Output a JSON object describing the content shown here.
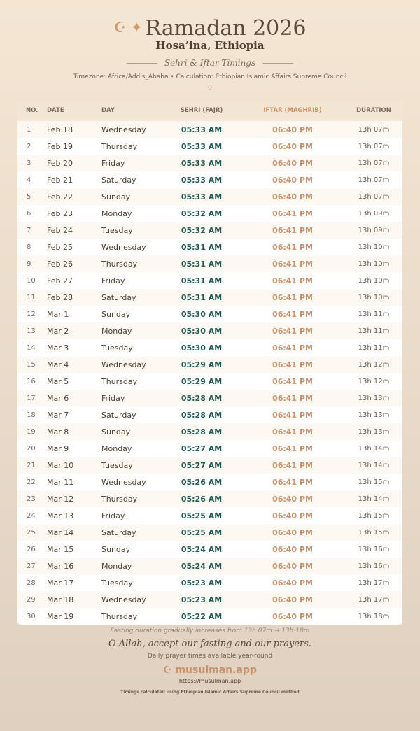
{
  "header": {
    "icons": "☪ ✦",
    "title": "Ramadan 2026",
    "city": "Hosa’ina, Ethiopia",
    "subtitle": "Sehri & Iftar Timings",
    "info": "Timezone: Africa/Addis_Ababa • Calculation: Ethiopian Islamic Affairs Supreme Council",
    "ornament": "◇"
  },
  "table": {
    "headers": [
      "NO.",
      "DATE",
      "DAY",
      "SEHRI (FAJR)",
      "IFTAR (MAGHRIB)",
      "DURATION"
    ],
    "rows": [
      [
        "1",
        "Feb 18",
        "Wednesday",
        "05:33 AM",
        "06:40 PM",
        "13h 07m"
      ],
      [
        "2",
        "Feb 19",
        "Thursday",
        "05:33 AM",
        "06:40 PM",
        "13h 07m"
      ],
      [
        "3",
        "Feb 20",
        "Friday",
        "05:33 AM",
        "06:40 PM",
        "13h 07m"
      ],
      [
        "4",
        "Feb 21",
        "Saturday",
        "05:33 AM",
        "06:40 PM",
        "13h 07m"
      ],
      [
        "5",
        "Feb 22",
        "Sunday",
        "05:33 AM",
        "06:40 PM",
        "13h 07m"
      ],
      [
        "6",
        "Feb 23",
        "Monday",
        "05:32 AM",
        "06:41 PM",
        "13h 09m"
      ],
      [
        "7",
        "Feb 24",
        "Tuesday",
        "05:32 AM",
        "06:41 PM",
        "13h 09m"
      ],
      [
        "8",
        "Feb 25",
        "Wednesday",
        "05:31 AM",
        "06:41 PM",
        "13h 10m"
      ],
      [
        "9",
        "Feb 26",
        "Thursday",
        "05:31 AM",
        "06:41 PM",
        "13h 10m"
      ],
      [
        "10",
        "Feb 27",
        "Friday",
        "05:31 AM",
        "06:41 PM",
        "13h 10m"
      ],
      [
        "11",
        "Feb 28",
        "Saturday",
        "05:31 AM",
        "06:41 PM",
        "13h 10m"
      ],
      [
        "12",
        "Mar 1",
        "Sunday",
        "05:30 AM",
        "06:41 PM",
        "13h 11m"
      ],
      [
        "13",
        "Mar 2",
        "Monday",
        "05:30 AM",
        "06:41 PM",
        "13h 11m"
      ],
      [
        "14",
        "Mar 3",
        "Tuesday",
        "05:30 AM",
        "06:41 PM",
        "13h 11m"
      ],
      [
        "15",
        "Mar 4",
        "Wednesday",
        "05:29 AM",
        "06:41 PM",
        "13h 12m"
      ],
      [
        "16",
        "Mar 5",
        "Thursday",
        "05:29 AM",
        "06:41 PM",
        "13h 12m"
      ],
      [
        "17",
        "Mar 6",
        "Friday",
        "05:28 AM",
        "06:41 PM",
        "13h 13m"
      ],
      [
        "18",
        "Mar 7",
        "Saturday",
        "05:28 AM",
        "06:41 PM",
        "13h 13m"
      ],
      [
        "19",
        "Mar 8",
        "Sunday",
        "05:28 AM",
        "06:41 PM",
        "13h 13m"
      ],
      [
        "20",
        "Mar 9",
        "Monday",
        "05:27 AM",
        "06:41 PM",
        "13h 14m"
      ],
      [
        "21",
        "Mar 10",
        "Tuesday",
        "05:27 AM",
        "06:41 PM",
        "13h 14m"
      ],
      [
        "22",
        "Mar 11",
        "Wednesday",
        "05:26 AM",
        "06:41 PM",
        "13h 15m"
      ],
      [
        "23",
        "Mar 12",
        "Thursday",
        "05:26 AM",
        "06:40 PM",
        "13h 14m"
      ],
      [
        "24",
        "Mar 13",
        "Friday",
        "05:25 AM",
        "06:40 PM",
        "13h 15m"
      ],
      [
        "25",
        "Mar 14",
        "Saturday",
        "05:25 AM",
        "06:40 PM",
        "13h 15m"
      ],
      [
        "26",
        "Mar 15",
        "Sunday",
        "05:24 AM",
        "06:40 PM",
        "13h 16m"
      ],
      [
        "27",
        "Mar 16",
        "Monday",
        "05:24 AM",
        "06:40 PM",
        "13h 16m"
      ],
      [
        "28",
        "Mar 17",
        "Tuesday",
        "05:23 AM",
        "06:40 PM",
        "13h 17m"
      ],
      [
        "29",
        "Mar 18",
        "Wednesday",
        "05:23 AM",
        "06:40 PM",
        "13h 17m"
      ],
      [
        "30",
        "Mar 19",
        "Thursday",
        "05:22 AM",
        "06:40 PM",
        "13h 18m"
      ]
    ]
  },
  "footer": {
    "note": "Fasting duration gradually increases from 13h 07m → 13h 18m",
    "prayer": "O Allah, accept our fasting and our prayers.",
    "availability": "Daily prayer times available year-round",
    "brand": "☪ musulman.app",
    "url": "https://musulman.app",
    "method": "Timings calculated using Ethiopian Islamic Affairs Supreme Council method"
  }
}
